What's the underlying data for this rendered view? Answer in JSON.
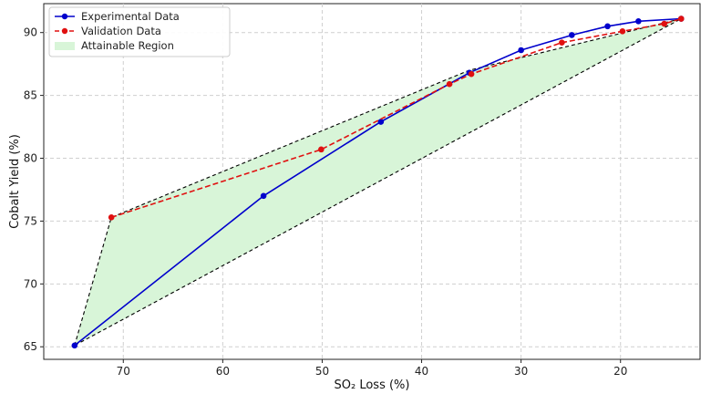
{
  "chart_data": {
    "type": "line",
    "xlabel": "SO₂ Loss (%)",
    "ylabel": "Cobalt Yield (%)",
    "xlim": [
      78,
      12
    ],
    "ylim": [
      64,
      92.3
    ],
    "x_axis_inverted": true,
    "xticks": [
      70,
      60,
      50,
      40,
      30,
      20
    ],
    "yticks": [
      65,
      70,
      75,
      80,
      85,
      90
    ],
    "grid": true,
    "legend_position": "top-left",
    "series": [
      {
        "name": "Experimental Data",
        "color": "#0000cc",
        "style": "solid",
        "marker": "circle",
        "x": [
          74.9,
          55.9,
          44.1,
          35.2,
          30,
          24.9,
          21.3,
          18.2,
          13.9
        ],
        "y": [
          65.1,
          77.0,
          82.9,
          86.8,
          88.6,
          89.8,
          90.5,
          90.9,
          91.1
        ]
      },
      {
        "name": "Validation Data",
        "color": "#e01010",
        "style": "dashed",
        "marker": "circle",
        "x": [
          71.2,
          50.1,
          37.2,
          35.0,
          25.9,
          19.8,
          15.6,
          13.9
        ],
        "y": [
          75.3,
          80.7,
          85.9,
          86.7,
          89.2,
          90.1,
          90.7,
          91.1
        ]
      }
    ],
    "region": {
      "name": "Attainable Region",
      "fill": "#d8f5d8",
      "boundary_color": "#000000",
      "boundary_style": "dashed",
      "polygon_x": [
        74.9,
        71.2,
        35.2,
        13.9
      ],
      "polygon_y": [
        65.1,
        75.3,
        87.0,
        91.1
      ]
    }
  }
}
